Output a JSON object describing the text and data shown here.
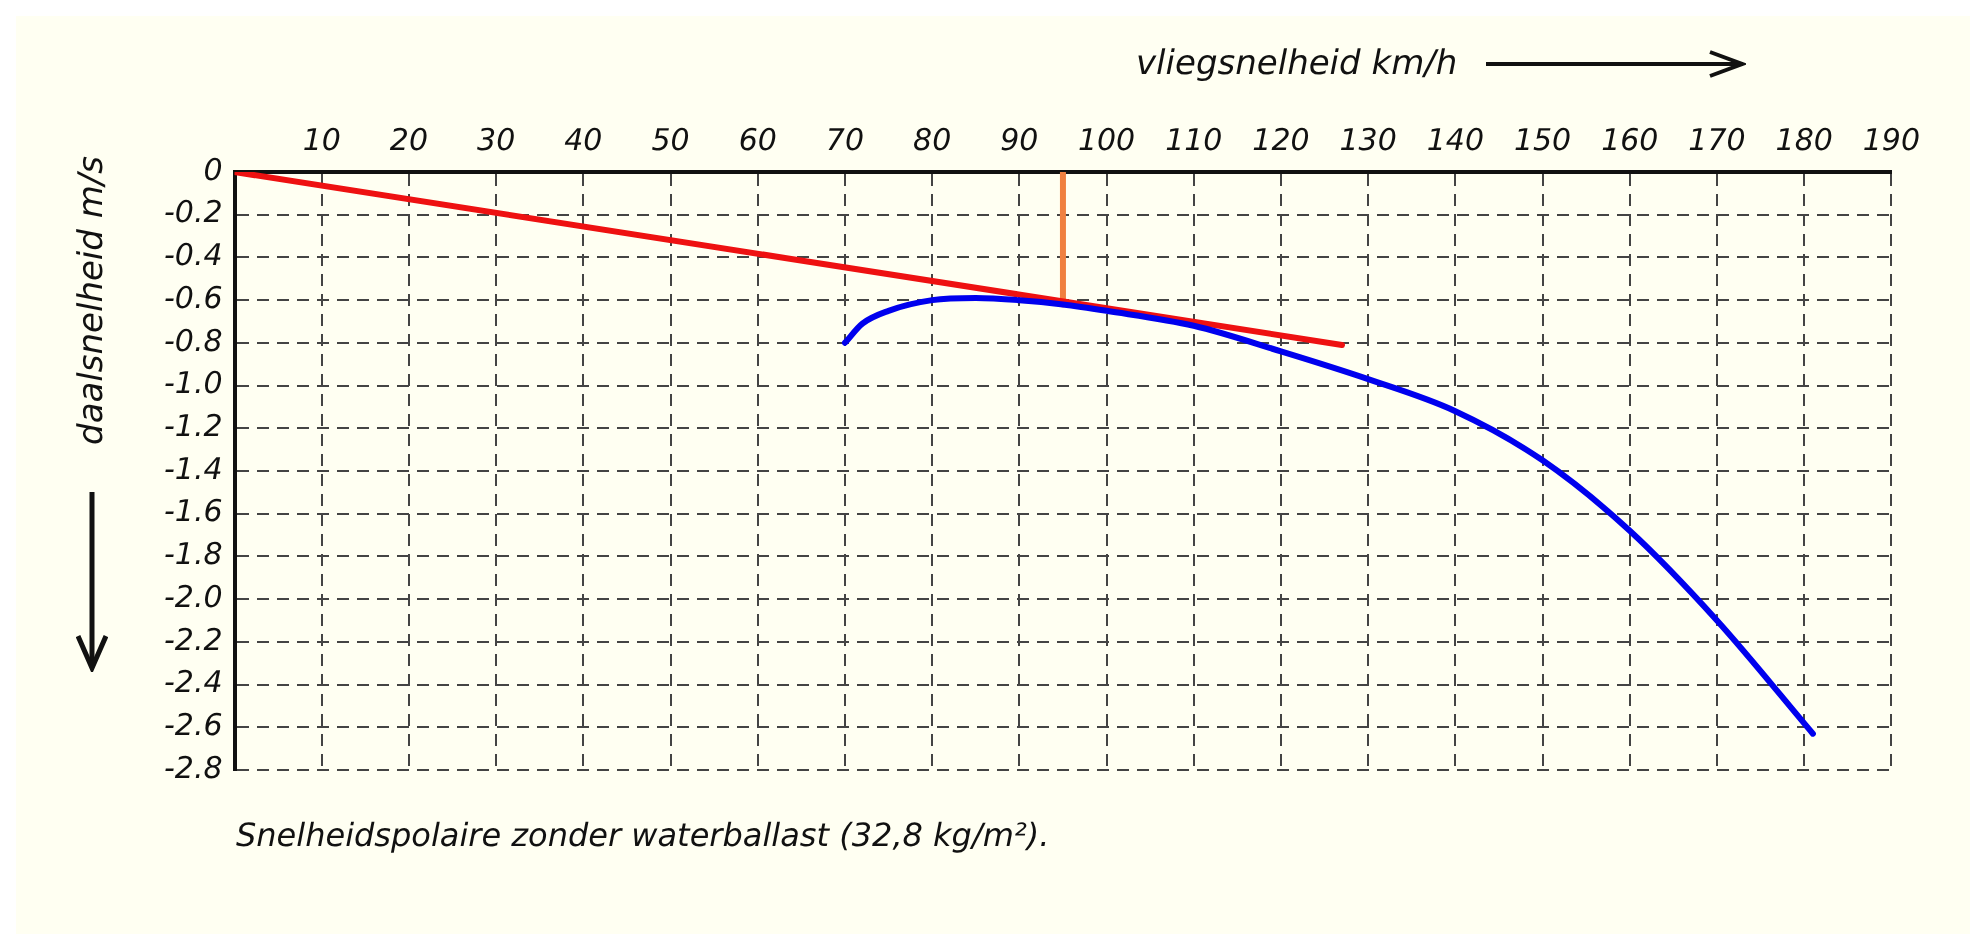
{
  "chart_data": {
    "type": "line",
    "xlabel": "vliegsnelheid km/h",
    "ylabel": "daalsnelheid m/s",
    "annotations": [
      "Snelheidspolaire zonder waterballast (32,8 kg/m²)."
    ],
    "xlim": [
      0,
      190
    ],
    "xticks": [
      {
        "value": 0,
        "label": null
      },
      10,
      20,
      30,
      40,
      50,
      60,
      70,
      80,
      90,
      100,
      110,
      120,
      130,
      140,
      150,
      160,
      170,
      180,
      190
    ],
    "ylim": [
      -2.8,
      0
    ],
    "yticks": [
      0,
      -0.2,
      -0.4,
      -0.6,
      -0.8,
      {
        "value": -1,
        "label": "-1.0"
      },
      -1.2,
      -1.4,
      -1.6,
      -1.8,
      {
        "value": -2,
        "label": "-2.0"
      },
      -2.2,
      -2.4,
      -2.6,
      -2.8
    ],
    "grid": true,
    "marker": "none",
    "line_style": "solid",
    "legend": false,
    "series": [
      {
        "type": "line",
        "color": "#0000ee",
        "x": [
          70,
          72,
          75,
          80,
          85,
          90,
          95,
          100,
          110,
          120,
          130,
          140,
          150,
          160,
          170,
          181
        ],
        "values": [
          -0.8,
          -0.71,
          -0.65,
          -0.6,
          -0.59,
          -0.6,
          -0.62,
          -0.65,
          -0.72,
          -0.84,
          -0.97,
          -1.12,
          -1.35,
          -1.68,
          -2.1,
          -2.63
        ]
      },
      {
        "type": "line",
        "color": "#ee1111",
        "x": [
          0,
          127
        ],
        "values": [
          0,
          -0.81
        ]
      },
      {
        "type": "line",
        "color": "#f08040",
        "x": [
          95,
          95
        ],
        "values": [
          0,
          -0.62
        ]
      }
    ]
  }
}
